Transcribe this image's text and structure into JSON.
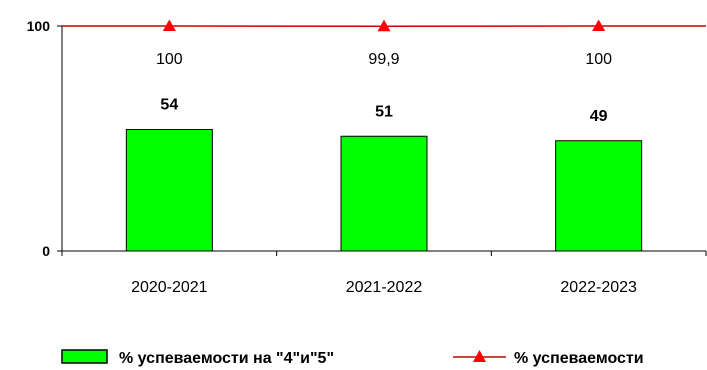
{
  "chart_data": {
    "type": "bar",
    "categories": [
      "2020-2021",
      "2021-2022",
      "2022-2023"
    ],
    "ylim": [
      0,
      100
    ],
    "yticks": [
      "0",
      "100"
    ],
    "grid": false,
    "legend_position": "bottom",
    "series": [
      {
        "name": "% успеваемости на \"4\"и\"5\"",
        "kind": "bar",
        "color": "#00ff00",
        "values": [
          54,
          51,
          49
        ],
        "labels": [
          "54",
          "51",
          "49"
        ]
      },
      {
        "name": "% успеваемости",
        "kind": "line",
        "marker": "triangle",
        "color": "#cc0000",
        "marker_color": "#ff0000",
        "values": [
          100,
          99.9,
          100
        ],
        "labels": [
          "100",
          "99,9",
          "100"
        ]
      }
    ]
  }
}
